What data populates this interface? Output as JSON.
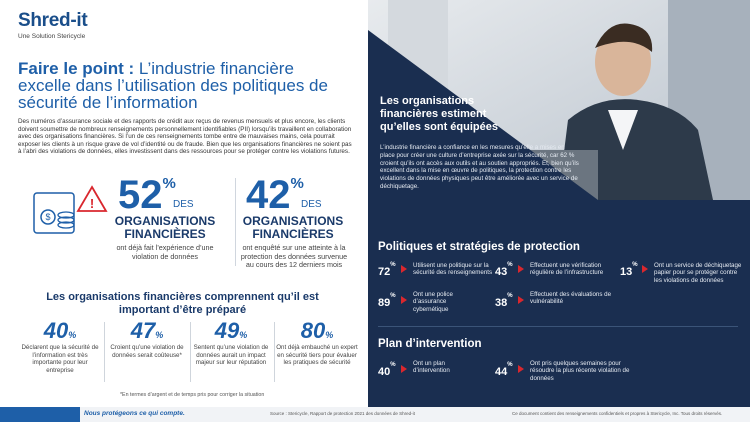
{
  "brand": {
    "name": "Shred-it",
    "tagline": "Une Solution Stericycle",
    "accent": "#1e5fa8",
    "navy": "#1a2e50",
    "red": "#d9272e"
  },
  "headline": {
    "bold": "Faire le point :",
    "rest": "L’industrie financière excelle dans l’utilisation des politiques de sécurité de l’information"
  },
  "intro": "Des numéros d’assurance sociale et des rapports de crédit aux reçus de revenus mensuels et plus encore, les clients doivent soumettre de nombreux renseignements personnellement identifiables (PII) lorsqu’ils travaillent en collaboration avec des organisations financières. Si l’un de ces renseignements tombe entre de mauvaises mains, cela pourrait exposer les clients à un risque grave de vol d’identité ou de fraude. Bien que les organisations financières ne soient pas à l’abri des violations de données, elles investissent dans des ressources pour se protéger contre les violations futures.",
  "stats": [
    {
      "value": "52",
      "sign": "%",
      "des": "DES",
      "label": "ORGANISATIONS FINANCIÈRES",
      "desc": "ont déjà fait l’expérience d’une violation de données"
    },
    {
      "value": "42",
      "sign": "%",
      "des": "DES",
      "label": "ORGANISATIONS FINANCIÈRES",
      "desc": "ont enquêté sur une atteinte à la protection des données survenue au cours des 12 derniers mois"
    }
  ],
  "prepared_title": "Les organisations financières comprennent qu’il est important d’être préparé",
  "prepared": [
    {
      "value": "40",
      "sign": "%",
      "desc": "Déclarent que la sécurité de l’information est très importante pour leur entreprise"
    },
    {
      "value": "47",
      "sign": "%",
      "desc": "Croient qu’une violation de données serait coûteuse*"
    },
    {
      "value": "49",
      "sign": "%",
      "desc": "Sentent qu’une violation de données aurait un impact majeur sur leur réputation"
    },
    {
      "value": "80",
      "sign": "%",
      "desc": "Ont déjà embauché un expert en sécurité tiers pour évaluer les pratiques de sécurité"
    }
  ],
  "footnote": "*En termes d’argent et de temps pris pour corriger la situation",
  "right": {
    "equipped_title": "Les organisations financières estiment qu’elles sont équipées",
    "equipped_text": "L’industrie financière a confiance en les mesures qu’elle a mises en place pour créer une culture d’entreprise axée sur la sécurité, car 62 % croient qu’ils ont accès aux outils et au soutien appropriés. Et, bien qu’ils excellent dans la mise en œuvre de politiques, la protection contre les violations de données physiques peut être améliorée avec un service de déchiquetage.",
    "policies_title": "Politiques et stratégies de protection",
    "policies": [
      {
        "value": "72",
        "sign": "%",
        "text": "Utilisent une politique sur la sécurité des renseignements"
      },
      {
        "value": "43",
        "sign": "%",
        "text": "Effectuent une vérification régulière de l’infrastructure"
      },
      {
        "value": "13",
        "sign": "%",
        "text": "Ont un service de déchiquetage papier pour se protéger contre les violations de données"
      },
      {
        "value": "89",
        "sign": "%",
        "text": "Ont une police d’assurance cybernétique"
      },
      {
        "value": "38",
        "sign": "%",
        "text": "Effectuent des évaluations de vulnérabilité"
      }
    ],
    "intervention_title": "Plan d’intervention",
    "intervention": [
      {
        "value": "40",
        "sign": "%",
        "text": "Ont un plan d’intervention"
      },
      {
        "value": "44",
        "sign": "%",
        "text": "Ont pris quelques semaines pour résoudre la plus récente violation de données"
      }
    ]
  },
  "footer": {
    "tagline": "Nous protégeons ce qui compte.",
    "source": "Source : Stericycle, Rapport de protection 2021 des données de Shred-it",
    "confidential": "Ce document contient des renseignements confidentiels et propres à Stericycle, Inc. Tous droits réservés."
  }
}
